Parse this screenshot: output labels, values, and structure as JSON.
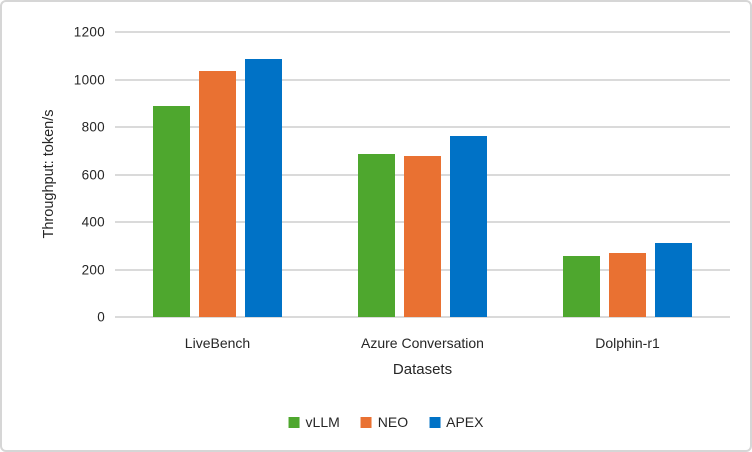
{
  "frame": {
    "background": "#FFFFFF",
    "border_color": "#D6D6D6",
    "text_color": "#262626",
    "gridline_color": "#DADADA"
  },
  "chart_data": {
    "type": "bar",
    "title": "",
    "categories": [
      "LiveBench",
      "Azure Conversation",
      "Dolphin-r1"
    ],
    "series": [
      {
        "name": "vLLM",
        "color": "#4EA72E",
        "values": [
          890,
          685,
          255
        ]
      },
      {
        "name": "NEO",
        "color": "#E97132",
        "values": [
          1035,
          677,
          268
        ]
      },
      {
        "name": "APEX",
        "color": "#0072C6",
        "values": [
          1085,
          762,
          310
        ]
      }
    ],
    "xlabel": "Datasets",
    "ylabel": "Throughput: token/s",
    "ylim": [
      0,
      1200
    ],
    "yticks": [
      0,
      200,
      400,
      600,
      800,
      1000,
      1200
    ],
    "grid": true,
    "legend_position": "bottom"
  }
}
